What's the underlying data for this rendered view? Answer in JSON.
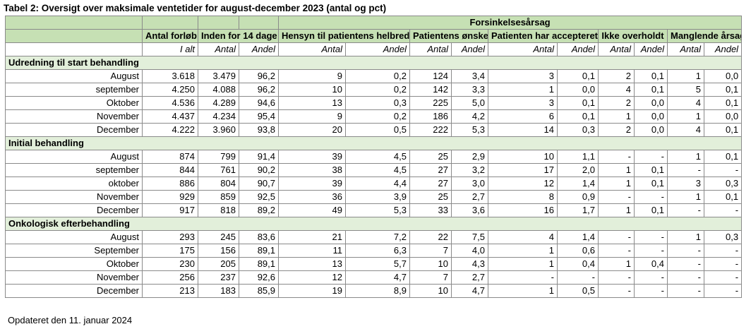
{
  "title": "Tabel 2: Oversigt over maksimale ventetider for august-december 2023 (antal og pct)",
  "footer": "Opdateret den 11. januar 2024",
  "header": {
    "group_label": "Forsinkelsesårsag",
    "columns": [
      "Antal forløb",
      "Inden for 14 dage",
      "Hensyn til patientens helbred",
      "Patientens ønske",
      "Patienten har accepteret",
      "Ikke overholdt",
      "Manglende årsag"
    ],
    "sub": [
      "I alt",
      "Antal",
      "Andel",
      "Antal",
      "Andel",
      "Antal",
      "Andel",
      "Antal",
      "Andel",
      "Antal",
      "Andel",
      "Antal",
      "Andel"
    ]
  },
  "sections": [
    {
      "name": "Udredning til start behandling",
      "rows": [
        {
          "label": "August",
          "cells": [
            "3.618",
            "3.479",
            "96,2",
            "9",
            "0,2",
            "124",
            "3,4",
            "3",
            "0,1",
            "2",
            "0,1",
            "1",
            "0,0"
          ]
        },
        {
          "label": "september",
          "cells": [
            "4.250",
            "4.088",
            "96,2",
            "10",
            "0,2",
            "142",
            "3,3",
            "1",
            "0,0",
            "4",
            "0,1",
            "5",
            "0,1"
          ]
        },
        {
          "label": "Oktober",
          "cells": [
            "4.536",
            "4.289",
            "94,6",
            "13",
            "0,3",
            "225",
            "5,0",
            "3",
            "0,1",
            "2",
            "0,0",
            "4",
            "0,1"
          ]
        },
        {
          "label": "November",
          "cells": [
            "4.437",
            "4.234",
            "95,4",
            "9",
            "0,2",
            "186",
            "4,2",
            "6",
            "0,1",
            "1",
            "0,0",
            "1",
            "0,0"
          ]
        },
        {
          "label": "December",
          "cells": [
            "4.222",
            "3.960",
            "93,8",
            "20",
            "0,5",
            "222",
            "5,3",
            "14",
            "0,3",
            "2",
            "0,0",
            "4",
            "0,1"
          ]
        }
      ]
    },
    {
      "name": "Initial behandling",
      "rows": [
        {
          "label": "August",
          "cells": [
            "874",
            "799",
            "91,4",
            "39",
            "4,5",
            "25",
            "2,9",
            "10",
            "1,1",
            "-",
            "-",
            "1",
            "0,1"
          ]
        },
        {
          "label": "september",
          "cells": [
            "844",
            "761",
            "90,2",
            "38",
            "4,5",
            "27",
            "3,2",
            "17",
            "2,0",
            "1",
            "0,1",
            "-",
            "-"
          ]
        },
        {
          "label": "oktober",
          "cells": [
            "886",
            "804",
            "90,7",
            "39",
            "4,4",
            "27",
            "3,0",
            "12",
            "1,4",
            "1",
            "0,1",
            "3",
            "0,3"
          ]
        },
        {
          "label": "November",
          "cells": [
            "929",
            "859",
            "92,5",
            "36",
            "3,9",
            "25",
            "2,7",
            "8",
            "0,9",
            "-",
            "-",
            "1",
            "0,1"
          ]
        },
        {
          "label": "December",
          "cells": [
            "917",
            "818",
            "89,2",
            "49",
            "5,3",
            "33",
            "3,6",
            "16",
            "1,7",
            "1",
            "0,1",
            "-",
            "-"
          ]
        }
      ]
    },
    {
      "name": "Onkologisk efterbehandling",
      "rows": [
        {
          "label": "August",
          "cells": [
            "293",
            "245",
            "83,6",
            "21",
            "7,2",
            "22",
            "7,5",
            "4",
            "1,4",
            "-",
            "-",
            "1",
            "0,3"
          ]
        },
        {
          "label": "September",
          "cells": [
            "175",
            "156",
            "89,1",
            "11",
            "6,3",
            "7",
            "4,0",
            "1",
            "0,6",
            "-",
            "-",
            "-",
            "-"
          ]
        },
        {
          "label": "Oktober",
          "cells": [
            "230",
            "205",
            "89,1",
            "13",
            "5,7",
            "10",
            "4,3",
            "1",
            "0,4",
            "1",
            "0,4",
            "-",
            "-"
          ]
        },
        {
          "label": "November",
          "cells": [
            "256",
            "237",
            "92,6",
            "12",
            "4,7",
            "7",
            "2,7",
            "-",
            "-",
            "-",
            "-",
            "-",
            "-"
          ]
        },
        {
          "label": "December",
          "cells": [
            "213",
            "183",
            "85,9",
            "19",
            "8,9",
            "10",
            "4,7",
            "1",
            "0,5",
            "-",
            "-",
            "-",
            "-"
          ]
        }
      ]
    }
  ]
}
